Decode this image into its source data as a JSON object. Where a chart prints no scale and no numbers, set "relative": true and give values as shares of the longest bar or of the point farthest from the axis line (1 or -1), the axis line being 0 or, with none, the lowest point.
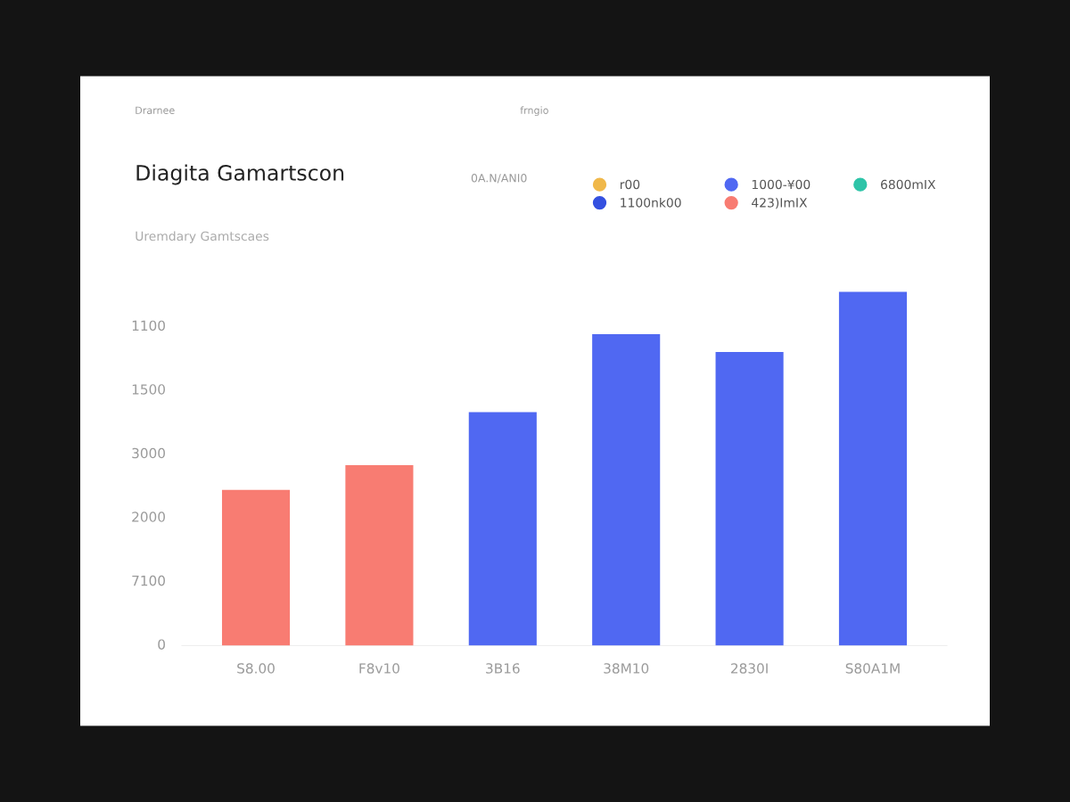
{
  "chart_data": {
    "type": "bar",
    "title": "Diagita Gamartscon",
    "subtitle": "Uremdary Gamtscaes",
    "annotations": [
      "Drarnee",
      "frngio",
      "0A.N/ANI0",
      "0",
      "7100",
      "2000",
      "3000",
      "1500",
      "1100"
    ],
    "categories": [
      "S8.00",
      "F8v10",
      "3B16",
      "38M10",
      "2830I",
      "S80A1M"
    ],
    "relative": true,
    "series": [
      {
        "name": "r00",
        "color": "#f0b84a",
        "values": [
          null,
          null,
          null,
          null,
          null,
          null
        ]
      },
      {
        "name": "1100nk00",
        "color": "#3450e0",
        "values": [
          null,
          null,
          null,
          null,
          null,
          null
        ]
      },
      {
        "name": "1000-¥00",
        "color": "#5068f2",
        "values": [
          null,
          null,
          0.66,
          0.88,
          0.83,
          1.0
        ]
      },
      {
        "name": "423)ImIX",
        "color": "#f87c72",
        "values": [
          0.44,
          0.51,
          null,
          null,
          null,
          null
        ]
      },
      {
        "name": "6800mIX",
        "color": "#2ec4a8",
        "values": [
          null,
          null,
          null,
          null,
          null,
          null
        ]
      }
    ],
    "legend": "top right"
  }
}
